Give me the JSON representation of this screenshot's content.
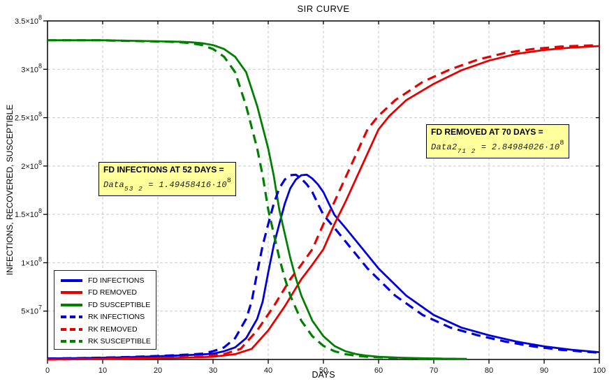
{
  "chart_data": {
    "type": "line",
    "title": "SIR CURVE",
    "xlabel": "DAYS",
    "ylabel": "INFECTIONS, RECOVERED, SUSCEPTIBLE",
    "xlim": [
      0,
      100
    ],
    "ylim": [
      0,
      350000000
    ],
    "unit": 1000000,
    "grid": true,
    "grid_color": "#C9C9C9",
    "frame_color": "#000000",
    "legend_position": "lower left",
    "x_ticks": [
      0,
      10,
      20,
      30,
      40,
      50,
      60,
      70,
      80,
      90,
      100
    ],
    "y_ticks": [
      {
        "v": 50,
        "m": "5×10",
        "e": "7"
      },
      {
        "v": 100,
        "m": "1×10",
        "e": "8"
      },
      {
        "v": 150,
        "m": "1.5×10",
        "e": "8"
      },
      {
        "v": 200,
        "m": "2×10",
        "e": "8"
      },
      {
        "v": 250,
        "m": "2.5×10",
        "e": "8"
      },
      {
        "v": 300,
        "m": "3×10",
        "e": "8"
      },
      {
        "v": 350,
        "m": "3.5×10",
        "e": "8"
      }
    ],
    "series": [
      {
        "name": "FD INFECTIONS",
        "color": "#0000DD",
        "style": "solid",
        "points": [
          [
            0,
            1
          ],
          [
            5,
            1.3
          ],
          [
            10,
            1.8
          ],
          [
            15,
            2.4
          ],
          [
            20,
            3.3
          ],
          [
            25,
            4.4
          ],
          [
            28,
            5.2
          ],
          [
            30,
            6
          ],
          [
            32,
            8.5
          ],
          [
            34,
            12.5
          ],
          [
            36,
            22
          ],
          [
            38,
            42
          ],
          [
            39,
            60
          ],
          [
            40,
            90
          ],
          [
            41,
            118
          ],
          [
            42,
            140
          ],
          [
            43,
            161
          ],
          [
            44,
            177
          ],
          [
            45,
            186
          ],
          [
            46,
            190.5
          ],
          [
            47,
            191
          ],
          [
            48,
            187
          ],
          [
            49,
            181
          ],
          [
            50,
            173
          ],
          [
            51,
            161
          ],
          [
            52,
            149.458416
          ],
          [
            54,
            136
          ],
          [
            56,
            122
          ],
          [
            58,
            108
          ],
          [
            60,
            94
          ],
          [
            65,
            66
          ],
          [
            70,
            46
          ],
          [
            75,
            33
          ],
          [
            80,
            25
          ],
          [
            85,
            18.5
          ],
          [
            90,
            13.5
          ],
          [
            95,
            10
          ],
          [
            100,
            7.5
          ]
        ]
      },
      {
        "name": "FD REMOVED",
        "color": "#E80000",
        "style": "solid",
        "points": [
          [
            0,
            0
          ],
          [
            10,
            0.6
          ],
          [
            20,
            1.3
          ],
          [
            25,
            1.9
          ],
          [
            30,
            2.8
          ],
          [
            34,
            5.5
          ],
          [
            37,
            11
          ],
          [
            40,
            30
          ],
          [
            43,
            55
          ],
          [
            46,
            83
          ],
          [
            48,
            98
          ],
          [
            50,
            114
          ],
          [
            52,
            140
          ],
          [
            54,
            163
          ],
          [
            56,
            188
          ],
          [
            58,
            213
          ],
          [
            60,
            238
          ],
          [
            62,
            252
          ],
          [
            65,
            268
          ],
          [
            70,
            284.984026
          ],
          [
            75,
            299
          ],
          [
            80,
            309
          ],
          [
            85,
            316
          ],
          [
            90,
            320
          ],
          [
            95,
            322.5
          ],
          [
            100,
            324
          ]
        ]
      },
      {
        "name": "FD SUSCEPTIBLE",
        "color": "#008000",
        "style": "solid",
        "points": [
          [
            0,
            330
          ],
          [
            10,
            330
          ],
          [
            15,
            329.5
          ],
          [
            20,
            329
          ],
          [
            24,
            328.5
          ],
          [
            26,
            328
          ],
          [
            28,
            327
          ],
          [
            30,
            325
          ],
          [
            32,
            321
          ],
          [
            34,
            313
          ],
          [
            36,
            297
          ],
          [
            38,
            262
          ],
          [
            40,
            218
          ],
          [
            41,
            190
          ],
          [
            42,
            155
          ],
          [
            43,
            130
          ],
          [
            44,
            105
          ],
          [
            45,
            84
          ],
          [
            46,
            66
          ],
          [
            48,
            40
          ],
          [
            50,
            24
          ],
          [
            52,
            14
          ],
          [
            54,
            8.5
          ],
          [
            56,
            5.5
          ],
          [
            58,
            3.8
          ],
          [
            60,
            2.8
          ],
          [
            64,
            1.8
          ],
          [
            68,
            1.2
          ],
          [
            72,
            0.8
          ],
          [
            76,
            0.6
          ]
        ]
      },
      {
        "name": "RK INFECTIONS",
        "color": "#0000DD",
        "style": "dashed",
        "points": [
          [
            0,
            1
          ],
          [
            5,
            1.4
          ],
          [
            10,
            1.9
          ],
          [
            15,
            2.6
          ],
          [
            20,
            3.6
          ],
          [
            23,
            4.4
          ],
          [
            26,
            5.2
          ],
          [
            28,
            6
          ],
          [
            30,
            8.5
          ],
          [
            32,
            12.5
          ],
          [
            34,
            22
          ],
          [
            36,
            42
          ],
          [
            37,
            60
          ],
          [
            38,
            90
          ],
          [
            39,
            118
          ],
          [
            40,
            140
          ],
          [
            41,
            161
          ],
          [
            42,
            177
          ],
          [
            43,
            186
          ],
          [
            44,
            190.5
          ],
          [
            45,
            191
          ],
          [
            46,
            187
          ],
          [
            47,
            181
          ],
          [
            48,
            173
          ],
          [
            49,
            161
          ],
          [
            50,
            149.5
          ],
          [
            52,
            136
          ],
          [
            54,
            122
          ],
          [
            56,
            108
          ],
          [
            58,
            94
          ],
          [
            63,
            66
          ],
          [
            68,
            46
          ],
          [
            73,
            33
          ],
          [
            78,
            25
          ],
          [
            83,
            18.5
          ],
          [
            88,
            13.5
          ],
          [
            93,
            10
          ],
          [
            98,
            7.8
          ],
          [
            100,
            7
          ]
        ]
      },
      {
        "name": "RK REMOVED",
        "color": "#E80000",
        "style": "dashed",
        "points": [
          [
            0,
            0
          ],
          [
            8,
            0.6
          ],
          [
            18,
            1.3
          ],
          [
            23,
            1.9
          ],
          [
            28,
            2.8
          ],
          [
            32,
            5.5
          ],
          [
            35,
            11
          ],
          [
            38,
            30
          ],
          [
            41,
            55
          ],
          [
            44,
            83
          ],
          [
            46,
            98
          ],
          [
            48,
            114
          ],
          [
            50,
            140
          ],
          [
            52,
            163
          ],
          [
            54,
            188
          ],
          [
            56,
            213
          ],
          [
            58,
            238
          ],
          [
            60,
            252
          ],
          [
            63,
            268
          ],
          [
            68,
            287
          ],
          [
            73,
            300
          ],
          [
            78,
            310
          ],
          [
            83,
            317
          ],
          [
            88,
            321
          ],
          [
            93,
            323.5
          ],
          [
            100,
            325
          ]
        ]
      },
      {
        "name": "RK SUSCEPTIBLE",
        "color": "#008000",
        "style": "dashed",
        "points": [
          [
            0,
            330
          ],
          [
            10,
            330
          ],
          [
            13,
            329.5
          ],
          [
            18,
            329
          ],
          [
            22,
            328.5
          ],
          [
            24,
            328
          ],
          [
            26,
            327
          ],
          [
            28,
            325
          ],
          [
            30,
            321
          ],
          [
            32,
            313
          ],
          [
            34,
            297
          ],
          [
            36,
            262
          ],
          [
            38,
            218
          ],
          [
            39,
            190
          ],
          [
            40,
            155
          ],
          [
            41,
            130
          ],
          [
            42,
            105
          ],
          [
            43,
            84
          ],
          [
            44,
            66
          ],
          [
            46,
            40
          ],
          [
            48,
            24
          ],
          [
            50,
            14
          ],
          [
            52,
            8.5
          ],
          [
            54,
            5.5
          ],
          [
            56,
            3.8
          ],
          [
            58,
            2.8
          ],
          [
            62,
            1.8
          ],
          [
            66,
            1.2
          ],
          [
            70,
            0.8
          ],
          [
            74,
            0.6
          ]
        ]
      }
    ]
  },
  "annotations": [
    {
      "title": "FD INFECTIONS AT 52 DAYS =",
      "var": "Data",
      "sub": "53 2",
      "rhs": "= 1.49458416·10",
      "exp": "8"
    },
    {
      "title": "FD REMOVED AT 70 DAYS =",
      "var": "Data2",
      "sub": "71 2",
      "rhs": "= 2.84984026·10",
      "exp": "8"
    }
  ],
  "annotation_bg": "#FFFF9B"
}
